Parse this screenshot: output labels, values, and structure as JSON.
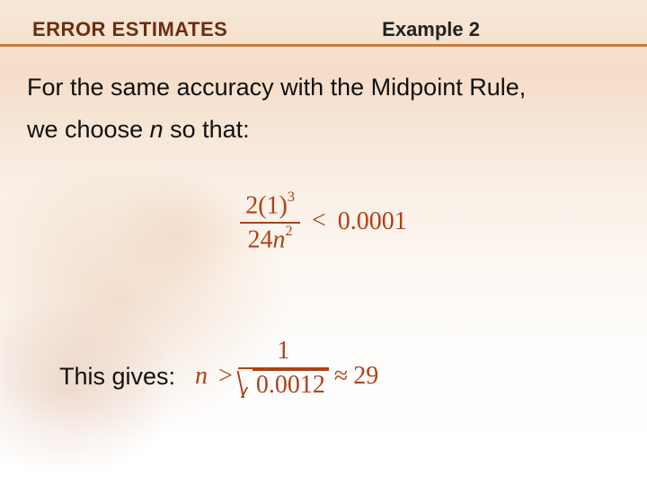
{
  "header": {
    "left": "ERROR ESTIMATES",
    "right": "Example 2"
  },
  "body": {
    "line1_a": "For the same accuracy with the Midpoint Rule,",
    "line2_a": "we choose ",
    "line2_var": "n",
    "line2_b": " so that:"
  },
  "formula1": {
    "num_a": "2(1)",
    "num_exp": "3",
    "den_a": "24",
    "den_var": "n",
    "den_exp": "2",
    "op": "<",
    "rhs": "0.0001",
    "color": "#b04016"
  },
  "row2": {
    "label": "This gives:"
  },
  "formula2": {
    "var": "n",
    "gt": ">",
    "frac_num": "1",
    "radicand": "0.0012",
    "approx": "≈",
    "result": "29",
    "color": "#b04016"
  },
  "style": {
    "header_rule_color": "#c77b3a",
    "header_title_color": "#6b2e0f"
  }
}
